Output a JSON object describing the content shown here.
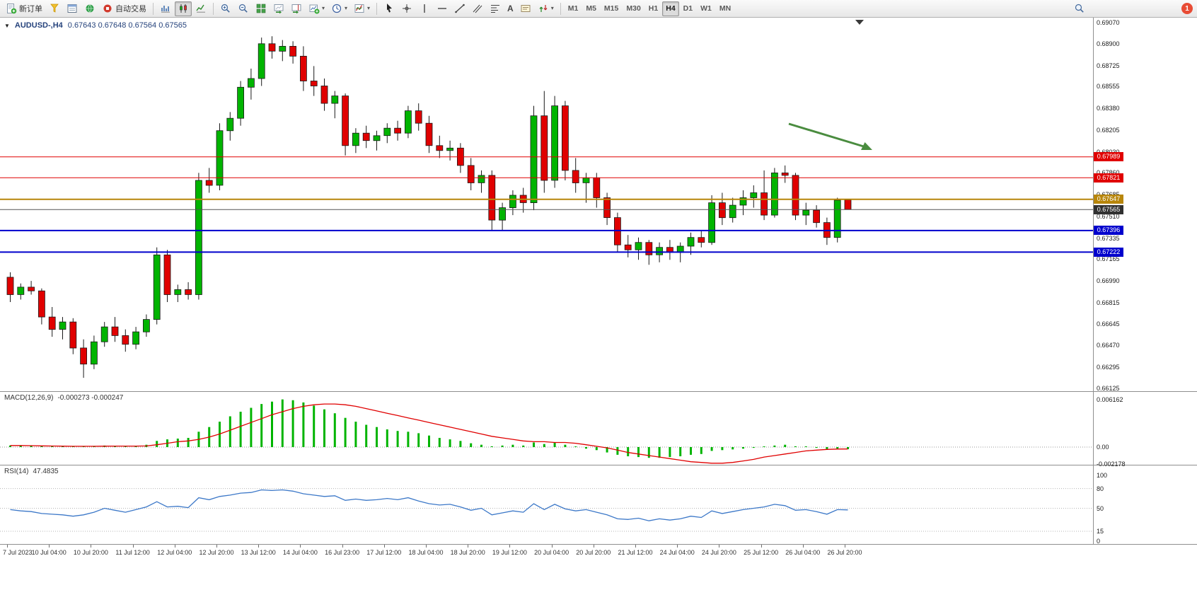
{
  "toolbar": {
    "new_order_label": "新订单",
    "auto_trading_label": "自动交易",
    "timeframes": [
      "M1",
      "M5",
      "M15",
      "M30",
      "H1",
      "H4",
      "D1",
      "W1",
      "MN"
    ],
    "selected_timeframe": "H4",
    "notification_count": "1"
  },
  "chart": {
    "symbol_period": "AUDUSD-,H4",
    "ohlc_text": "0.67643 0.67648 0.67564 0.67565",
    "price_axis_labels": [
      "0.69070",
      "0.68900",
      "0.68725",
      "0.68555",
      "0.68380",
      "0.68205",
      "0.68030",
      "0.67860",
      "0.67685",
      "0.67510",
      "0.67335",
      "0.67165",
      "0.66990",
      "0.66815",
      "0.66645",
      "0.66470",
      "0.66295",
      "0.66125"
    ],
    "price_lines": [
      {
        "price": 0.67989,
        "label": "0.67989",
        "color": "#e00000",
        "width": 1
      },
      {
        "price": 0.67821,
        "label": "0.67821",
        "color": "#e00000",
        "width": 1
      },
      {
        "price": 0.67647,
        "label": "0.67647",
        "color": "#b8860b",
        "width": 2
      },
      {
        "price": 0.67396,
        "label": "0.67396",
        "color": "#0000cd",
        "width": 2
      },
      {
        "price": 0.67222,
        "label": "0.67222",
        "color": "#0000cd",
        "width": 2
      }
    ],
    "current_price": {
      "price": 0.67565,
      "label": "0.67565",
      "color": "#303030"
    },
    "candle_colors": {
      "up": "#00b400",
      "down": "#e00000",
      "wick": "#1a1a1a"
    },
    "annotation_arrow_color": "#4a8c3f"
  },
  "macd": {
    "title": "MACD(12,26,9)",
    "values_text": "-0.000273 -0.000247",
    "axis_labels": [
      "0.006162",
      "0.00",
      "-0.002178"
    ],
    "axis_values": [
      0.006162,
      0,
      -0.002178
    ],
    "histogram_color": "#00b400",
    "signal_color": "#e00000"
  },
  "rsi": {
    "title": "RSI(14)",
    "value_text": "47.4835",
    "axis_labels": [
      "100",
      "80",
      "50",
      "15",
      "0"
    ],
    "axis_values": [
      100,
      80,
      50,
      15,
      0
    ],
    "levels": [
      80,
      50,
      15
    ],
    "line_color": "#3c78c8"
  },
  "chart_data": [
    {
      "type": "candlestick",
      "title": "AUDUSD- H4",
      "ylim": [
        0.66125,
        0.6907
      ],
      "x_labels": [
        "7 Jul 2023",
        "10 Jul 04:00",
        "10 Jul 20:00",
        "11 Jul 12:00",
        "12 Jul 04:00",
        "12 Jul 20:00",
        "13 Jul 12:00",
        "14 Jul 04:00",
        "16 Jul 23:00",
        "17 Jul 12:00",
        "18 Jul 04:00",
        "18 Jul 20:00",
        "19 Jul 12:00",
        "20 Jul 04:00",
        "20 Jul 20:00",
        "21 Jul 12:00",
        "24 Jul 04:00",
        "24 Jul 20:00",
        "25 Jul 12:00",
        "26 Jul 04:00",
        "26 Jul 20:00"
      ],
      "candles_per_label": 4,
      "ohlc": [
        [
          0.6702,
          0.6706,
          0.6682,
          0.6688
        ],
        [
          0.6688,
          0.6697,
          0.6684,
          0.6694
        ],
        [
          0.6694,
          0.6699,
          0.6688,
          0.6691
        ],
        [
          0.6691,
          0.6693,
          0.6664,
          0.667
        ],
        [
          0.667,
          0.6678,
          0.6654,
          0.666
        ],
        [
          0.666,
          0.667,
          0.6652,
          0.6666
        ],
        [
          0.6666,
          0.6669,
          0.664,
          0.6645
        ],
        [
          0.6645,
          0.6652,
          0.6621,
          0.6632
        ],
        [
          0.6632,
          0.6655,
          0.6628,
          0.665
        ],
        [
          0.665,
          0.6666,
          0.6646,
          0.6662
        ],
        [
          0.6662,
          0.667,
          0.665,
          0.6655
        ],
        [
          0.6655,
          0.666,
          0.6642,
          0.6648
        ],
        [
          0.6648,
          0.6662,
          0.6644,
          0.6658
        ],
        [
          0.6658,
          0.6672,
          0.6654,
          0.6668
        ],
        [
          0.6668,
          0.6726,
          0.6664,
          0.672
        ],
        [
          0.672,
          0.6724,
          0.6682,
          0.6688
        ],
        [
          0.6688,
          0.6696,
          0.6682,
          0.6692
        ],
        [
          0.6692,
          0.6698,
          0.6684,
          0.6688
        ],
        [
          0.6688,
          0.6786,
          0.6684,
          0.678
        ],
        [
          0.678,
          0.679,
          0.677,
          0.6776
        ],
        [
          0.6776,
          0.6826,
          0.6772,
          0.682
        ],
        [
          0.682,
          0.6835,
          0.6812,
          0.683
        ],
        [
          0.683,
          0.686,
          0.6824,
          0.6855
        ],
        [
          0.6855,
          0.687,
          0.6845,
          0.6862
        ],
        [
          0.6862,
          0.6895,
          0.6856,
          0.689
        ],
        [
          0.689,
          0.6896,
          0.6878,
          0.6884
        ],
        [
          0.6884,
          0.6893,
          0.6876,
          0.6888
        ],
        [
          0.6888,
          0.6892,
          0.6874,
          0.688
        ],
        [
          0.688,
          0.6888,
          0.6852,
          0.686
        ],
        [
          0.686,
          0.6872,
          0.6848,
          0.6856
        ],
        [
          0.6856,
          0.6862,
          0.6836,
          0.6842
        ],
        [
          0.6842,
          0.6852,
          0.683,
          0.6848
        ],
        [
          0.6848,
          0.685,
          0.68,
          0.6808
        ],
        [
          0.6808,
          0.6822,
          0.6802,
          0.6818
        ],
        [
          0.6818,
          0.6824,
          0.6806,
          0.6812
        ],
        [
          0.6812,
          0.682,
          0.6804,
          0.6816
        ],
        [
          0.6816,
          0.6826,
          0.681,
          0.6822
        ],
        [
          0.6822,
          0.6828,
          0.6812,
          0.6818
        ],
        [
          0.6818,
          0.684,
          0.6814,
          0.6836
        ],
        [
          0.6836,
          0.6842,
          0.682,
          0.6826
        ],
        [
          0.6826,
          0.6832,
          0.6802,
          0.6808
        ],
        [
          0.6808,
          0.6816,
          0.6798,
          0.6804
        ],
        [
          0.6804,
          0.6812,
          0.6796,
          0.6806
        ],
        [
          0.6806,
          0.681,
          0.6786,
          0.6792
        ],
        [
          0.6792,
          0.6798,
          0.6772,
          0.6778
        ],
        [
          0.6778,
          0.6788,
          0.677,
          0.6784
        ],
        [
          0.6784,
          0.6788,
          0.674,
          0.6748
        ],
        [
          0.6748,
          0.6762,
          0.674,
          0.6758
        ],
        [
          0.6758,
          0.6772,
          0.6752,
          0.6768
        ],
        [
          0.6768,
          0.6774,
          0.6754,
          0.6762
        ],
        [
          0.6762,
          0.684,
          0.6756,
          0.6832
        ],
        [
          0.6832,
          0.6852,
          0.677,
          0.678
        ],
        [
          0.678,
          0.6848,
          0.6774,
          0.684
        ],
        [
          0.684,
          0.6844,
          0.678,
          0.6788
        ],
        [
          0.6788,
          0.6798,
          0.677,
          0.6778
        ],
        [
          0.6778,
          0.6786,
          0.6762,
          0.6782
        ],
        [
          0.6782,
          0.6786,
          0.6758,
          0.6766
        ],
        [
          0.6766,
          0.677,
          0.6744,
          0.675
        ],
        [
          0.675,
          0.6754,
          0.6722,
          0.6728
        ],
        [
          0.6728,
          0.6736,
          0.6718,
          0.6724
        ],
        [
          0.6724,
          0.6734,
          0.6716,
          0.673
        ],
        [
          0.673,
          0.6732,
          0.6712,
          0.672
        ],
        [
          0.672,
          0.673,
          0.6714,
          0.6726
        ],
        [
          0.6726,
          0.6732,
          0.6716,
          0.6722
        ],
        [
          0.6722,
          0.673,
          0.6714,
          0.6727
        ],
        [
          0.6727,
          0.6738,
          0.672,
          0.6734
        ],
        [
          0.6734,
          0.674,
          0.6726,
          0.673
        ],
        [
          0.673,
          0.6768,
          0.6728,
          0.6762
        ],
        [
          0.6762,
          0.677,
          0.6744,
          0.675
        ],
        [
          0.675,
          0.6766,
          0.6746,
          0.676
        ],
        [
          0.676,
          0.6772,
          0.6752,
          0.6766
        ],
        [
          0.6766,
          0.6776,
          0.6758,
          0.677
        ],
        [
          0.677,
          0.6788,
          0.6748,
          0.6752
        ],
        [
          0.6752,
          0.679,
          0.675,
          0.6786
        ],
        [
          0.6786,
          0.6792,
          0.6778,
          0.6784
        ],
        [
          0.6784,
          0.6786,
          0.6748,
          0.6752
        ],
        [
          0.6752,
          0.6762,
          0.6744,
          0.6756
        ],
        [
          0.6756,
          0.676,
          0.6742,
          0.6746
        ],
        [
          0.6746,
          0.675,
          0.6728,
          0.6734
        ],
        [
          0.6734,
          0.6766,
          0.673,
          0.6764
        ],
        [
          0.67643,
          0.67648,
          0.67564,
          0.67565
        ]
      ]
    },
    {
      "type": "bar",
      "title": "MACD(12,26,9)",
      "ylim": [
        -0.002178,
        0.006162
      ],
      "values": [
        0.0002,
        0.00018,
        0.00015,
        0.0001,
        8e-05,
        0.0001,
        0.00012,
        0.0001,
        0.00015,
        0.0002,
        0.00015,
        0.0001,
        0.00015,
        0.0003,
        0.0008,
        0.001,
        0.0011,
        0.0012,
        0.002,
        0.0026,
        0.0033,
        0.004,
        0.0046,
        0.0051,
        0.0056,
        0.0059,
        0.0062,
        0.0061,
        0.0058,
        0.0054,
        0.0049,
        0.0044,
        0.0038,
        0.0033,
        0.0029,
        0.0026,
        0.0023,
        0.0021,
        0.002,
        0.0018,
        0.0015,
        0.0012,
        0.001,
        0.0008,
        0.0005,
        0.0003,
        0.0001,
        0.0002,
        0.0003,
        0.0002,
        0.0006,
        0.0004,
        0.0006,
        0.0003,
        0.0,
        -0.0002,
        -0.0004,
        -0.0007,
        -0.001,
        -0.0012,
        -0.0013,
        -0.0014,
        -0.0014,
        -0.0013,
        -0.0012,
        -0.001,
        -0.0009,
        -0.0005,
        -0.0004,
        -0.0003,
        -0.0002,
        -0.0001,
        0.0,
        0.0002,
        0.0003,
        0.0001,
        0.0,
        -0.0001,
        -0.0003,
        -0.00028,
        -0.000273
      ],
      "series": [
        {
          "name": "signal",
          "values": [
            0.0002,
            0.0002,
            0.00018,
            0.00016,
            0.00014,
            0.00012,
            0.0001,
            0.0001,
            0.0001,
            0.00012,
            0.00013,
            0.00013,
            0.00013,
            0.00015,
            0.0003,
            0.0005,
            0.0007,
            0.0008,
            0.001,
            0.0013,
            0.0017,
            0.0022,
            0.0027,
            0.0032,
            0.0037,
            0.0042,
            0.0046,
            0.005,
            0.0053,
            0.0055,
            0.0056,
            0.0056,
            0.0055,
            0.0053,
            0.005,
            0.0047,
            0.0044,
            0.0041,
            0.0038,
            0.0035,
            0.0032,
            0.0029,
            0.0026,
            0.0023,
            0.002,
            0.0017,
            0.0014,
            0.0012,
            0.001,
            0.0008,
            0.0007,
            0.0007,
            0.0006,
            0.0006,
            0.0005,
            0.0003,
            0.0001,
            -0.0001,
            -0.0004,
            -0.0007,
            -0.0009,
            -0.0011,
            -0.0013,
            -0.0015,
            -0.0017,
            -0.0019,
            -0.002,
            -0.0021,
            -0.0021,
            -0.002,
            -0.0018,
            -0.0016,
            -0.0013,
            -0.0011,
            -0.0009,
            -0.0007,
            -0.0005,
            -0.0004,
            -0.0003,
            -0.00026,
            -0.000247
          ]
        }
      ]
    },
    {
      "type": "line",
      "title": "RSI(14)",
      "ylim": [
        0,
        100
      ],
      "values": [
        48,
        46,
        45,
        42,
        41,
        40,
        38,
        40,
        44,
        50,
        47,
        44,
        48,
        52,
        60,
        52,
        53,
        51,
        66,
        63,
        68,
        70,
        73,
        74,
        78,
        77,
        78,
        76,
        72,
        70,
        68,
        69,
        62,
        64,
        62,
        63,
        65,
        63,
        66,
        61,
        57,
        55,
        56,
        52,
        47,
        50,
        40,
        43,
        46,
        44,
        57,
        48,
        56,
        49,
        46,
        48,
        44,
        40,
        34,
        33,
        35,
        31,
        34,
        32,
        34,
        38,
        36,
        46,
        42,
        45,
        48,
        50,
        52,
        56,
        54,
        47,
        48,
        45,
        41,
        48,
        47.5
      ]
    }
  ]
}
